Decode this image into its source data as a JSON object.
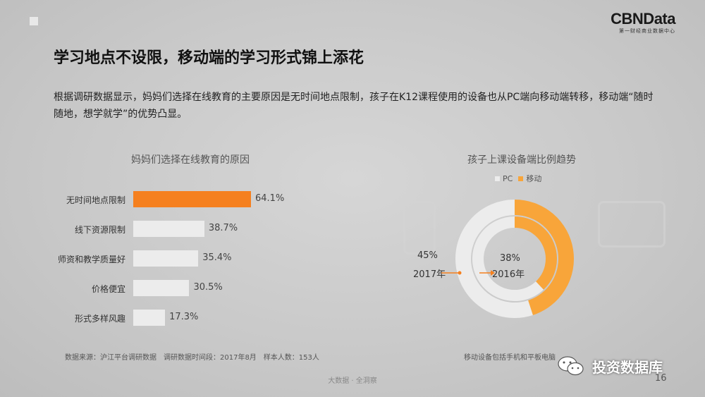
{
  "header": {
    "logo": "CBNData",
    "logo_sub": "第一财经商业数据中心",
    "title": "学习地点不设限，移动端的学习形式锦上添花",
    "intro": "根据调研数据显示，妈妈们选择在线教育的主要原因是无时间地点限制，孩子在K12课程使用的设备也从PC端向移动端转移，移动端“随时随地，想学就学”的优势凸显。"
  },
  "chart_data": [
    {
      "type": "bar",
      "title": "妈妈们选择在线教育的原因",
      "orientation": "horizontal",
      "categories": [
        "无时间地点限制",
        "线下资源限制",
        "师资和教学质量好",
        "价格便宜",
        "形式多样风趣"
      ],
      "values": [
        64.1,
        38.7,
        35.4,
        30.5,
        17.3
      ],
      "value_labels": [
        "64.1%",
        "38.7%",
        "35.4%",
        "30.5%",
        "17.3%"
      ],
      "highlight_index": 0,
      "colors": {
        "highlight": "#f5801f",
        "normal": "#ececec"
      }
    },
    {
      "type": "pie",
      "subtype": "nested-donut",
      "title": "孩子上课设备端比例趋势",
      "legend": [
        "PC",
        "移动"
      ],
      "legend_position": "top",
      "rings": [
        {
          "name": "2017年",
          "ring": "outer",
          "mobile": 45,
          "pc": 55,
          "label": "45%"
        },
        {
          "name": "2016年",
          "ring": "inner",
          "mobile": 38,
          "pc": 62,
          "label": "38%"
        }
      ],
      "colors": {
        "PC": "#ececec",
        "移动": "#f8a53a"
      }
    }
  ],
  "footer": {
    "source": "数据来源：沪江平台调研数据　调研数据时间段：2017年8月　样本人数：153人",
    "note": "移动设备包括手机和平板电脑",
    "center": "大数据 · 全洞察",
    "page": "16",
    "wechat": "投资数据库"
  }
}
